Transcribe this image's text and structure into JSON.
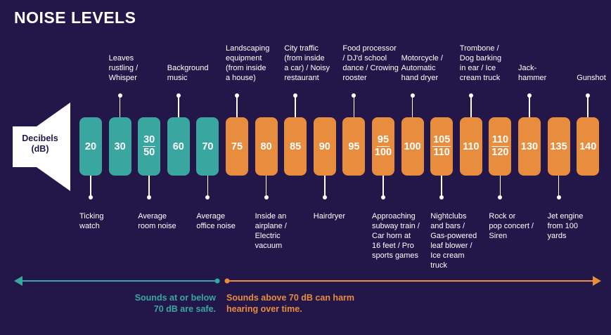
{
  "title": "NOISE LEVELS",
  "speaker": {
    "line1": "Decibels",
    "line2": "(dB)"
  },
  "colors": {
    "background": "#23174a",
    "safe": "#3aa6a0",
    "harm": "#e88c3d"
  },
  "pills": [
    {
      "value": "20",
      "zone": "safe"
    },
    {
      "value": "30",
      "zone": "safe"
    },
    {
      "num": "30",
      "den": "50",
      "zone": "safe"
    },
    {
      "value": "60",
      "zone": "safe"
    },
    {
      "value": "70",
      "zone": "safe"
    },
    {
      "value": "75",
      "zone": "harm"
    },
    {
      "value": "80",
      "zone": "harm"
    },
    {
      "value": "85",
      "zone": "harm"
    },
    {
      "value": "90",
      "zone": "harm"
    },
    {
      "value": "95",
      "zone": "harm"
    },
    {
      "num": "95",
      "den": "100",
      "zone": "harm"
    },
    {
      "value": "100",
      "zone": "harm"
    },
    {
      "num": "105",
      "den": "110",
      "zone": "harm"
    },
    {
      "value": "110",
      "zone": "harm"
    },
    {
      "num": "110",
      "den": "120",
      "zone": "harm"
    },
    {
      "value": "130",
      "zone": "harm"
    },
    {
      "value": "135",
      "zone": "harm"
    },
    {
      "value": "140",
      "zone": "harm"
    }
  ],
  "labels_top": [
    {
      "pill": 1,
      "lines": [
        "Leaves",
        "rustling /",
        "Whisper"
      ]
    },
    {
      "pill": 3,
      "lines": [
        "Background",
        "music"
      ]
    },
    {
      "pill": 5,
      "lines": [
        "Landscaping",
        "equipment",
        "(from inside",
        "a house)"
      ]
    },
    {
      "pill": 7,
      "lines": [
        "City traffic",
        "(from inside",
        "a car) / Noisy",
        "restaurant"
      ]
    },
    {
      "pill": 9,
      "lines": [
        "Food processor",
        "/ DJ'd school",
        "dance / Crowing",
        "rooster"
      ]
    },
    {
      "pill": 11,
      "lines": [
        "Motorcycle /",
        "Automatic",
        "hand dryer"
      ]
    },
    {
      "pill": 13,
      "lines": [
        "Trombone /",
        "Dog barking",
        "in ear / Ice",
        "cream truck"
      ]
    },
    {
      "pill": 15,
      "lines": [
        "Jack-",
        "hammer"
      ]
    },
    {
      "pill": 17,
      "lines": [
        "Gunshot"
      ]
    }
  ],
  "labels_bottom": [
    {
      "pill": 0,
      "lines": [
        "Ticking",
        "watch"
      ]
    },
    {
      "pill": 2,
      "lines": [
        "Average",
        "room noise"
      ]
    },
    {
      "pill": 4,
      "lines": [
        "Average",
        "office noise"
      ]
    },
    {
      "pill": 6,
      "lines": [
        "Inside an",
        "airplane /",
        "Electric",
        "vacuum"
      ]
    },
    {
      "pill": 8,
      "lines": [
        "Hairdryer"
      ]
    },
    {
      "pill": 10,
      "lines": [
        "Approaching",
        "subway train /",
        "Car horn at",
        "16 feet / Pro",
        "sports games"
      ]
    },
    {
      "pill": 12,
      "lines": [
        "Nightclubs",
        "and bars /",
        "Gas-powered",
        "leaf blower /",
        "Ice cream",
        "truck"
      ]
    },
    {
      "pill": 14,
      "lines": [
        "Rock or",
        "pop concert /",
        "Siren"
      ]
    },
    {
      "pill": 16,
      "lines": [
        "Jet engine",
        "from 100",
        "yards"
      ]
    }
  ],
  "footer": {
    "safe_line1": "Sounds at or below",
    "safe_line2": "70 dB are safe.",
    "harm_line1": "Sounds above 70 dB can harm",
    "harm_line2": "hearing over time."
  }
}
